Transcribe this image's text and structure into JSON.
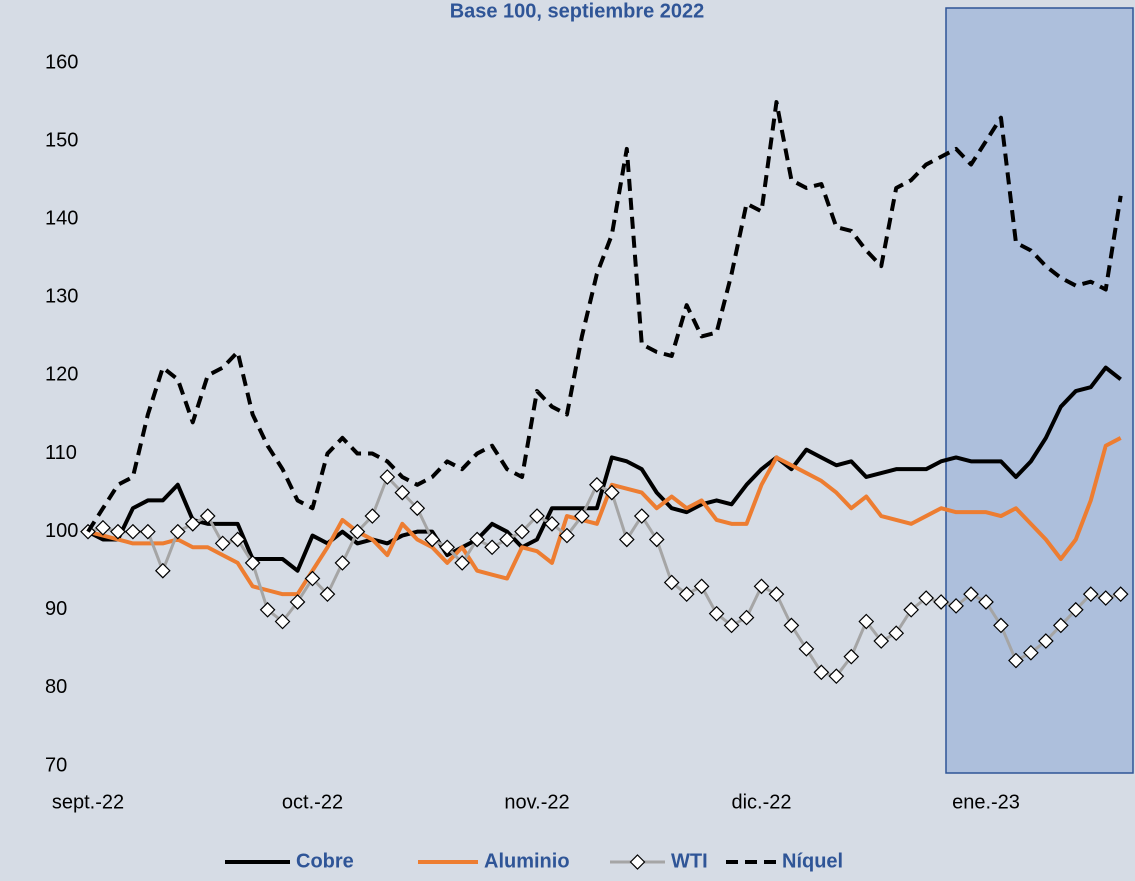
{
  "chart_data": {
    "type": "line",
    "title": "Base 100, septiembre 2022",
    "categories": [
      "sept.-22",
      null,
      null,
      null,
      null,
      null,
      null,
      null,
      null,
      null,
      null,
      null,
      null,
      null,
      null,
      "oct.-22",
      null,
      null,
      null,
      null,
      null,
      null,
      null,
      null,
      null,
      null,
      null,
      null,
      null,
      null,
      "nov.-22",
      null,
      null,
      null,
      null,
      null,
      null,
      null,
      null,
      null,
      null,
      null,
      null,
      null,
      null,
      "dic.-22",
      null,
      null,
      null,
      null,
      null,
      null,
      null,
      null,
      null,
      null,
      null,
      null,
      null,
      null,
      "ene.-23",
      null,
      null,
      null,
      null,
      null,
      null,
      null,
      null,
      null
    ],
    "ylim": [
      70,
      160
    ],
    "yticks": [
      70,
      80,
      90,
      100,
      110,
      120,
      130,
      140,
      150,
      160
    ],
    "grid": false,
    "legend": "bottom",
    "series": [
      {
        "name": "Cobre",
        "color": "#000000",
        "line_style": "solid",
        "marker": "none",
        "values": [
          100,
          99,
          99,
          103,
          104,
          104,
          106,
          101.5,
          101,
          101,
          101,
          96.5,
          96.5,
          96.5,
          95,
          99.5,
          98.5,
          100,
          98.5,
          99,
          98.5,
          99.5,
          100,
          100,
          97,
          98,
          99,
          101,
          100,
          98,
          99,
          103,
          103,
          103,
          103,
          109.5,
          109,
          108,
          105,
          103,
          102.5,
          103.5,
          104,
          103.5,
          106,
          108,
          109.5,
          108,
          110.5,
          109.5,
          108.5,
          109,
          107,
          107.5,
          108,
          108,
          108,
          109,
          109.5,
          109,
          109,
          109,
          107,
          109,
          112,
          116,
          118,
          118.5,
          121,
          119.5
        ]
      },
      {
        "name": "Aluminio",
        "color": "#ed7d31",
        "line_style": "solid",
        "marker": "none",
        "values": [
          100,
          99.5,
          99,
          98.5,
          98.5,
          98.5,
          99,
          98,
          98,
          97,
          96,
          93,
          92.5,
          92,
          92,
          95,
          98,
          101.5,
          100,
          99,
          97,
          101,
          99,
          98,
          96,
          98,
          95,
          94.5,
          94,
          98,
          97.5,
          96,
          102,
          101.5,
          101,
          106,
          105.5,
          105,
          103,
          104.5,
          103,
          104,
          101.5,
          101,
          101,
          106,
          109.5,
          108.5,
          107.5,
          106.5,
          105,
          103,
          104.5,
          102,
          101.5,
          101,
          102,
          103,
          102.5,
          102.5,
          102.5,
          102,
          103,
          101,
          99,
          96.5,
          99,
          104,
          111,
          112
        ]
      },
      {
        "name": "WTI",
        "color": "#a5a5a5",
        "line_style": "solid",
        "marker": "diamond",
        "values": [
          100,
          100.5,
          100,
          100,
          100,
          95,
          100,
          101,
          102,
          98.5,
          99,
          96,
          90,
          88.5,
          91,
          94,
          92,
          96,
          100,
          102,
          107,
          105,
          103,
          99,
          98,
          96,
          99,
          98,
          99,
          100,
          102,
          101,
          99.5,
          102,
          106,
          105,
          99,
          102,
          99,
          93.5,
          92,
          93,
          89.5,
          88,
          89,
          93,
          92,
          88,
          85,
          82,
          81.5,
          84,
          88.5,
          86,
          87,
          90,
          91.5,
          91,
          90.5,
          92,
          91,
          88,
          83.5,
          84.5,
          86,
          88,
          90,
          92,
          91.5,
          92
        ]
      },
      {
        "name": "Níquel",
        "color": "#000000",
        "line_style": "dashed",
        "marker": "none",
        "values": [
          100,
          103,
          106,
          107,
          115,
          121,
          119.5,
          114,
          120,
          121,
          123,
          115,
          111,
          108,
          104,
          103,
          110,
          112,
          110,
          110,
          109,
          107,
          106,
          107,
          109,
          108,
          110,
          111,
          108,
          107,
          118,
          116,
          115,
          125,
          133,
          138,
          149,
          124,
          123,
          122.5,
          129,
          125,
          125.5,
          133,
          142,
          141,
          155,
          145,
          144,
          144.5,
          139,
          138.5,
          136,
          134,
          144,
          145,
          147,
          148,
          149,
          147,
          150,
          153,
          137,
          136,
          134,
          132.5,
          131.5,
          132,
          131,
          143
        ]
      }
    ]
  }
}
